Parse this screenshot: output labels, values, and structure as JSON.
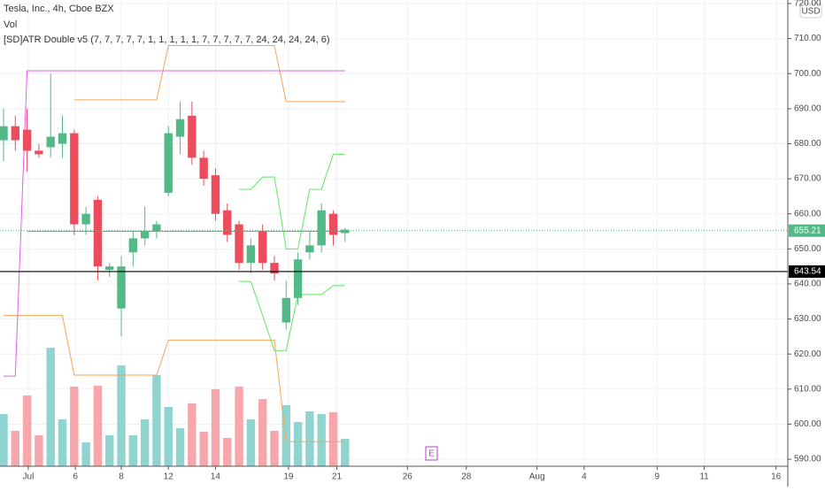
{
  "chart_data": {
    "type": "candlestick",
    "title": "Tesla, Inc., 4h, Cboe BZX",
    "legend_items": [
      "Vol",
      "[SD]ATR Double v5 (7, 7, 7, 7, 7, 1, 1, 1, 1, 1, 7, 7, 7, 7, 7, 24, 24, 24, 24, 6)"
    ],
    "currency": "USD",
    "earnings_marker": "E",
    "up_color": "#53b987",
    "down_color": "#eb4d5c",
    "volume_up_color": "#8fd4cf",
    "volume_down_color": "#f5a7ab",
    "open": [
      681,
      685,
      684,
      678,
      679,
      680,
      683,
      657,
      664,
      644,
      633,
      649,
      653,
      655,
      666,
      682,
      688,
      676,
      671,
      661,
      657,
      646,
      655,
      646,
      629,
      636,
      649,
      651,
      660,
      654.5
    ],
    "high": [
      690,
      688,
      690,
      680,
      700,
      688,
      684,
      662,
      665,
      646,
      648,
      655,
      662,
      658,
      685,
      692,
      692,
      678,
      673,
      663,
      658,
      653,
      657,
      648,
      641,
      649,
      655,
      663,
      661,
      656
    ],
    "low": [
      675,
      678,
      672,
      676,
      676,
      676,
      654,
      654,
      641,
      642,
      625,
      645,
      651,
      653,
      665,
      677,
      674,
      668,
      658,
      652,
      644,
      643,
      644,
      641,
      627,
      634,
      647,
      649,
      651,
      652
    ],
    "close": [
      685,
      681,
      678,
      677,
      682,
      683,
      657,
      660,
      645,
      645,
      645,
      653,
      655,
      657,
      683,
      687,
      676,
      670,
      660,
      654,
      646,
      651,
      646,
      643,
      636,
      647,
      651,
      661,
      654,
      655.5
    ],
    "volume": [
      5.9,
      4.0,
      8.0,
      3.5,
      13.4,
      5.3,
      9.0,
      2.7,
      9.1,
      3.5,
      11.4,
      3.5,
      5.3,
      10.3,
      6.7,
      4.3,
      7.1,
      3.9,
      8.7,
      3.2,
      9.0,
      5.3,
      7.6,
      4.0,
      6.9,
      5.0,
      6.2,
      5.9,
      6.1,
      3.1
    ],
    "lines": [
      {
        "color": "#f5a35a",
        "values": [
          null,
          null,
          null,
          null,
          null,
          null,
          692.5,
          692.5,
          692.5,
          692.5,
          692.5,
          692.5,
          692.5,
          692.5,
          708,
          708,
          708,
          708,
          708,
          708,
          708,
          708,
          708,
          708,
          692,
          692,
          692,
          692,
          692,
          692
        ]
      },
      {
        "color": "#f5a35a",
        "values": [
          631,
          631,
          631,
          631,
          631,
          631,
          614,
          614,
          614,
          614,
          614,
          614,
          614,
          614,
          624,
          624,
          624,
          624,
          624,
          624,
          624,
          624,
          624,
          624,
          595,
          595,
          595,
          595,
          595,
          595
        ]
      },
      {
        "color": "#e65ce8",
        "values": [
          613.7,
          613.7,
          700.8,
          700.8,
          700.8,
          700.8,
          700.8,
          700.8,
          700.8,
          700.8,
          700.8,
          700.8,
          700.8,
          700.8,
          700.8,
          700.8,
          700.8,
          700.8,
          700.8,
          700.8,
          700.8,
          700.8,
          700.8,
          700.8,
          700.8,
          700.8,
          700.8,
          700.8,
          700.8,
          700.8
        ]
      },
      {
        "color": "#e65ce8",
        "values": [
          null,
          null,
          655,
          655,
          655,
          655,
          655,
          655,
          655,
          655,
          655,
          655,
          655,
          655,
          655,
          655,
          655,
          655,
          655,
          655,
          655,
          655,
          655,
          655,
          655,
          655,
          655,
          655,
          655,
          655
        ]
      },
      {
        "color": "#5ee85e",
        "values": [
          null,
          null,
          null,
          null,
          null,
          null,
          null,
          null,
          null,
          null,
          null,
          null,
          null,
          null,
          null,
          null,
          null,
          null,
          null,
          null,
          667,
          667,
          670.5,
          670.5,
          650,
          650,
          667,
          667,
          677,
          677
        ]
      },
      {
        "color": "#5ee85e",
        "values": [
          null,
          null,
          null,
          null,
          null,
          null,
          null,
          null,
          null,
          null,
          null,
          null,
          null,
          null,
          null,
          null,
          null,
          null,
          null,
          null,
          640.7,
          640.7,
          631,
          621,
          621,
          637,
          637,
          637,
          639.5,
          639.5
        ]
      }
    ],
    "price_lines": [
      {
        "value": 655.21,
        "label": "655.21",
        "color": "#53b987"
      },
      {
        "value": 643.54,
        "label": "643.54",
        "color": "#000000"
      }
    ],
    "xlim": [
      -0.3,
      66.6
    ],
    "xticks": [
      {
        "value": 2.1,
        "label": "Jul"
      },
      {
        "value": 6.1,
        "label": "6"
      },
      {
        "value": 10,
        "label": "8"
      },
      {
        "value": 14,
        "label": "12"
      },
      {
        "value": 18,
        "label": "14"
      },
      {
        "value": 24.2,
        "label": "19"
      },
      {
        "value": 28.3,
        "label": "21"
      },
      {
        "value": 34.3,
        "label": "26"
      },
      {
        "value": 39.3,
        "label": "28"
      },
      {
        "value": 45.3,
        "label": "Aug"
      },
      {
        "value": 49.3,
        "label": "4"
      },
      {
        "value": 55.5,
        "label": "9"
      },
      {
        "value": 59.5,
        "label": "11"
      },
      {
        "value": 65.6,
        "label": "16"
      }
    ],
    "ylim": [
      588,
      721
    ],
    "yticks": [
      {
        "value": 590,
        "label": "590.00"
      },
      {
        "value": 600,
        "label": "600.00"
      },
      {
        "value": 610,
        "label": "610.00"
      },
      {
        "value": 620,
        "label": "620.00"
      },
      {
        "value": 630,
        "label": "630.00"
      },
      {
        "value": 640,
        "label": "640.00"
      },
      {
        "value": 650,
        "label": "650.00"
      },
      {
        "value": 660,
        "label": "660.00"
      },
      {
        "value": 670,
        "label": "670.00"
      },
      {
        "value": 680,
        "label": "680.00"
      },
      {
        "value": 690,
        "label": "690.00"
      },
      {
        "value": 700,
        "label": "700.00"
      },
      {
        "value": 710,
        "label": "710.00"
      },
      {
        "value": 720,
        "label": "720.00"
      }
    ],
    "grid": true
  }
}
